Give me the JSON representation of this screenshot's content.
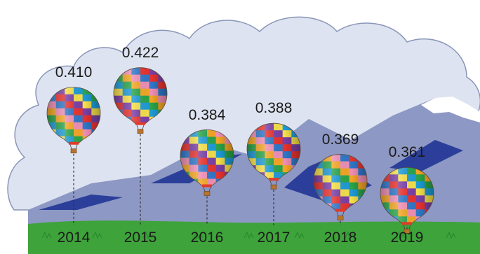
{
  "chart_data": {
    "type": "scatter",
    "style": "pictorial hot-air balloons, height of balloon encodes value",
    "categories": [
      "2014",
      "2015",
      "2016",
      "2017",
      "2018",
      "2019"
    ],
    "values": [
      0.41,
      0.422,
      0.384,
      0.388,
      0.369,
      0.361
    ],
    "value_labels": [
      "0.410",
      "0.422",
      "0.384",
      "0.388",
      "0.369",
      "0.361"
    ],
    "title": "",
    "xlabel": "",
    "ylabel": "",
    "ylim": [
      0.35,
      0.43
    ],
    "grid": false,
    "legend": "none"
  },
  "colors": {
    "cloud": "#dde3f0",
    "cloud_outline": "#8a96b8",
    "mountain": "#8d98c4",
    "mountain_shadow": "#2b3f9a",
    "snow": "#ffffff",
    "grass": "#3ea33a",
    "grass_dark": "#2b8a2e",
    "tether": "#333333",
    "basket": "#b8742c",
    "burner": "#e23a2a",
    "balloon_palette": [
      "#e8322e",
      "#f4a623",
      "#f6e04a",
      "#2f77c9",
      "#2aa44a",
      "#7a3fa6",
      "#f08fb5",
      "#1e9bd7"
    ]
  },
  "icons": [
    "hot-air-balloon-icon",
    "cloud-icon",
    "mountain-icon",
    "grass-icon"
  ]
}
